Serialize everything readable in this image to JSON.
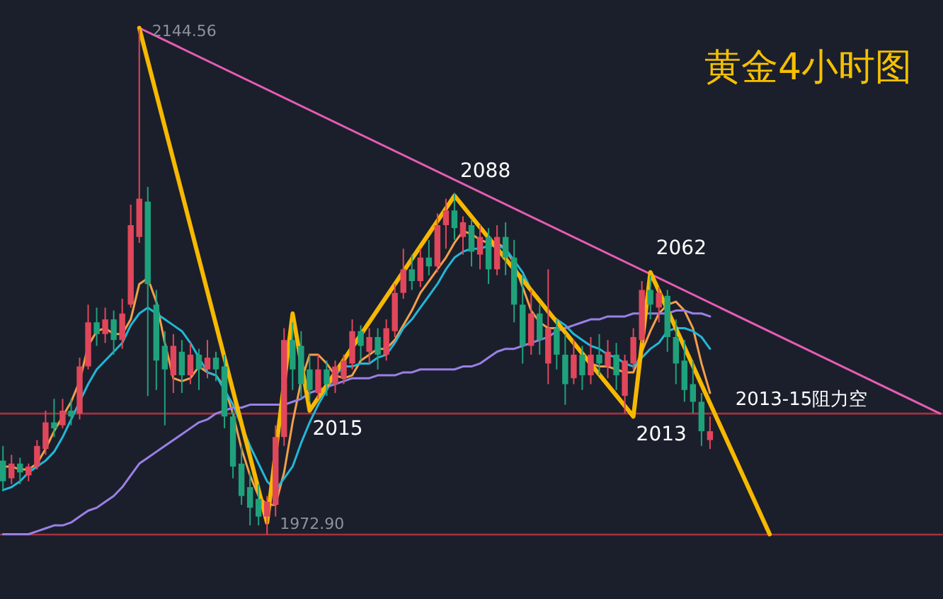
{
  "chart_data": {
    "type": "candlestick",
    "title": "黄金4小时图",
    "categories": [
      null,
      null,
      null,
      null,
      null,
      null,
      null,
      null,
      null,
      null,
      null,
      null,
      null,
      null,
      null,
      null,
      null,
      null,
      null,
      null,
      null,
      null,
      null,
      null,
      null,
      null,
      null,
      null,
      null,
      null,
      null,
      null,
      null,
      null,
      null,
      null,
      null,
      null,
      null,
      null,
      null,
      null,
      null,
      null,
      null,
      null,
      null,
      null,
      null,
      null,
      null,
      null,
      null,
      null,
      null,
      null,
      null,
      null,
      null,
      null,
      null,
      null,
      null,
      null,
      null,
      null,
      null,
      null,
      null,
      null,
      null,
      null,
      null,
      null,
      null,
      null,
      null,
      null,
      null,
      null,
      null,
      null,
      null,
      null,
      null,
      null,
      null,
      null,
      null,
      null,
      null,
      null,
      null,
      null,
      null,
      null,
      null,
      null,
      null,
      null,
      null,
      null,
      null,
      null,
      null,
      null,
      null,
      null,
      null,
      null,
      null
    ],
    "ohlc": [
      [
        1998,
        2003,
        1988,
        1991
      ],
      [
        1992,
        2000,
        1990,
        1997
      ],
      [
        1997,
        1999,
        1990,
        1994
      ],
      [
        1993,
        1997,
        1991,
        1996
      ],
      [
        1996,
        2005,
        1995,
        2003
      ],
      [
        2002,
        2015,
        2000,
        2011
      ],
      [
        2011,
        2019,
        2006,
        2009
      ],
      [
        2010,
        2019,
        2009,
        2015
      ],
      [
        2015,
        2019,
        2010,
        2013
      ],
      [
        2014,
        2033,
        2012,
        2030
      ],
      [
        2030,
        2051,
        2029,
        2045
      ],
      [
        2045,
        2050,
        2037,
        2041
      ],
      [
        2041,
        2050,
        2038,
        2046
      ],
      [
        2046,
        2049,
        2034,
        2039
      ],
      [
        2039,
        2053,
        2036,
        2048
      ],
      [
        2051,
        2085,
        2050,
        2078
      ],
      [
        2074,
        2144.56,
        2072,
        2087
      ],
      [
        2086,
        2091,
        2020,
        2058
      ],
      [
        2051,
        2056,
        2022,
        2032
      ],
      [
        2037,
        2042,
        2010,
        2029
      ],
      [
        2027,
        2041,
        2021,
        2037
      ],
      [
        2035,
        2039,
        2021,
        2027
      ],
      [
        2027,
        2038,
        2024,
        2034
      ],
      [
        2034,
        2036,
        2022,
        2029
      ],
      [
        2029,
        2039,
        2026,
        2033
      ],
      [
        2033,
        2035,
        2025,
        2029
      ],
      [
        2030,
        2034,
        2009,
        2013
      ],
      [
        2013,
        2015,
        1992,
        1996
      ],
      [
        1997,
        2003,
        1983,
        1986
      ],
      [
        1989,
        1994,
        1976,
        1982
      ],
      [
        1985,
        1990,
        1976,
        1979
      ],
      [
        1979,
        1986,
        1972.9,
        1984
      ],
      [
        1983,
        2010,
        1979,
        2006
      ],
      [
        2006,
        2043,
        2003,
        2039
      ],
      [
        2039,
        2045,
        2022,
        2029
      ],
      [
        2037,
        2042,
        2019,
        2024
      ],
      [
        2029,
        2034,
        2018,
        2022
      ],
      [
        2021,
        2034,
        2019,
        2029
      ],
      [
        2029,
        2032,
        2020,
        2024
      ],
      [
        2024,
        2032,
        2021,
        2030
      ],
      [
        2026,
        2034,
        2024,
        2032
      ],
      [
        2031,
        2046,
        2029,
        2042
      ],
      [
        2042,
        2044,
        2032,
        2037
      ],
      [
        2035,
        2043,
        2031,
        2040
      ],
      [
        2040,
        2043,
        2029,
        2034
      ],
      [
        2034,
        2046,
        2032,
        2043
      ],
      [
        2042,
        2058,
        2040,
        2055
      ],
      [
        2055,
        2070,
        2053,
        2063
      ],
      [
        2063,
        2068,
        2056,
        2059
      ],
      [
        2059,
        2070,
        2057,
        2067
      ],
      [
        2067,
        2073,
        2061,
        2064
      ],
      [
        2064,
        2082,
        2062,
        2078
      ],
      [
        2078,
        2087,
        2070,
        2083
      ],
      [
        2083,
        2089,
        2073,
        2077
      ],
      [
        2074,
        2081,
        2068,
        2079
      ],
      [
        2078,
        2080,
        2064,
        2069
      ],
      [
        2068,
        2078,
        2063,
        2074
      ],
      [
        2074,
        2077,
        2058,
        2063
      ],
      [
        2063,
        2078,
        2061,
        2074
      ],
      [
        2074,
        2079,
        2061,
        2067
      ],
      [
        2067,
        2073,
        2045,
        2051
      ],
      [
        2051,
        2061,
        2031,
        2037
      ],
      [
        2037,
        2056,
        2034,
        2048
      ],
      [
        2048,
        2051,
        2034,
        2039
      ],
      [
        2031,
        2063,
        2024,
        2043
      ],
      [
        2043,
        2046,
        2029,
        2034
      ],
      [
        2034,
        2041,
        2017,
        2024
      ],
      [
        2026,
        2039,
        2024,
        2034
      ],
      [
        2034,
        2037,
        2022,
        2027
      ],
      [
        2027,
        2040,
        2024,
        2034
      ],
      [
        2034,
        2041,
        2027,
        2031
      ],
      [
        2030,
        2039,
        2026,
        2035
      ],
      [
        2034,
        2038,
        2022,
        2027
      ],
      [
        2020,
        2034,
        2014,
        2032
      ],
      [
        2031,
        2043,
        2029,
        2040
      ],
      [
        2039,
        2059,
        2038,
        2056
      ],
      [
        2056,
        2061,
        2046,
        2051
      ],
      [
        2050,
        2057,
        2045,
        2055
      ],
      [
        2054,
        2056,
        2035,
        2040
      ],
      [
        2040,
        2046,
        2024,
        2031
      ],
      [
        2032,
        2039,
        2018,
        2022
      ],
      [
        2024,
        2032,
        2014,
        2018
      ],
      [
        2018,
        2021,
        2003,
        2008
      ],
      [
        2005,
        2013,
        2002,
        2008
      ],
      null,
      null,
      null,
      null,
      null,
      null,
      null,
      null,
      null,
      null,
      null,
      null,
      null,
      null,
      null,
      null,
      null,
      null,
      null,
      null,
      null,
      null,
      null,
      null,
      null,
      null,
      null
    ],
    "colors": [
      "#1fa27c",
      "#e0475b",
      "#1fa27c",
      "#e0475b",
      "#e0475b",
      "#e0475b",
      "#1fa27c",
      "#e0475b",
      "#1fa27c",
      "#e0475b",
      "#e0475b",
      "#1fa27c",
      "#e0475b",
      "#1fa27c",
      "#e0475b",
      "#e0475b",
      "#e0475b",
      "#1fa27c",
      "#1fa27c",
      "#1fa27c",
      "#e0475b",
      "#1fa27c",
      "#e0475b",
      "#1fa27c",
      "#e0475b",
      "#1fa27c",
      "#1fa27c",
      "#1fa27c",
      "#1fa27c",
      "#1fa27c",
      "#1fa27c",
      "#e0475b",
      "#e0475b",
      "#e0475b",
      "#1fa27c",
      "#1fa27c",
      "#1fa27c",
      "#e0475b",
      "#1fa27c",
      "#e0475b",
      "#e0475b",
      "#e0475b",
      "#1fa27c",
      "#e0475b",
      "#1fa27c",
      "#e0475b",
      "#e0475b",
      "#e0475b",
      "#1fa27c",
      "#e0475b",
      "#1fa27c",
      "#e0475b",
      "#e0475b",
      "#1fa27c",
      "#e0475b",
      "#1fa27c",
      "#e0475b",
      "#1fa27c",
      "#e0475b",
      "#1fa27c",
      "#1fa27c",
      "#1fa27c",
      "#e0475b",
      "#1fa27c",
      "#e0475b",
      "#1fa27c",
      "#1fa27c",
      "#e0475b",
      "#1fa27c",
      "#e0475b",
      "#1fa27c",
      "#e0475b",
      "#1fa27c",
      "#e0475b",
      "#e0475b",
      "#e0475b",
      "#1fa27c",
      "#e0475b",
      "#1fa27c",
      "#1fa27c",
      "#1fa27c",
      "#1fa27c",
      "#1fa27c",
      "#e0475b",
      null,
      null,
      null,
      null,
      null,
      null,
      null,
      null,
      null,
      null,
      null,
      null,
      null,
      null,
      null,
      null,
      null,
      null,
      null,
      null,
      null,
      null,
      null,
      null,
      null,
      null,
      null
    ],
    "value_labels": [
      null,
      null,
      null,
      null,
      null,
      null,
      null,
      null,
      null,
      null,
      null,
      null,
      null,
      null,
      null,
      null,
      "2144.56",
      null,
      null,
      null,
      null,
      null,
      null,
      null,
      null,
      null,
      null,
      null,
      null,
      null,
      null,
      "1972.90",
      null,
      null,
      null,
      null,
      null,
      null,
      null,
      null,
      null,
      null,
      null,
      null,
      null,
      null,
      null,
      null,
      null,
      null,
      null,
      null,
      null,
      null,
      null,
      null,
      null,
      null,
      null,
      null,
      null,
      null,
      null,
      null,
      null,
      null,
      null,
      null,
      null,
      null,
      null,
      null,
      null,
      null,
      null,
      null,
      null,
      null,
      null,
      null,
      null,
      null,
      null,
      null,
      null,
      null,
      null,
      null,
      null,
      null,
      null,
      null,
      null,
      null,
      null,
      null,
      null,
      null,
      null,
      null,
      null,
      null,
      null,
      null,
      null,
      null,
      null,
      null,
      null,
      null,
      null
    ],
    "series": [
      {
        "type": "line",
        "color": "#f2a04a",
        "values": [
          1996,
          1996,
          1995,
          1995,
          1997,
          2002,
          2008,
          2013,
          2018,
          2025,
          2037,
          2042,
          2043,
          2041,
          2041,
          2046,
          2058,
          2060,
          2052,
          2038,
          2026,
          2025,
          2026,
          2030,
          2028,
          2027,
          2023,
          2014,
          2002,
          1993,
          1986,
          1983,
          1983,
          1994,
          2011,
          2025,
          2034,
          2034,
          2031,
          2027,
          2026,
          2027,
          2032,
          2034,
          2036,
          2036,
          2039,
          2044,
          2049,
          2055,
          2059,
          2063,
          2067,
          2072,
          2076,
          2075,
          2073,
          2072,
          2072,
          2070,
          2065,
          2057,
          2049,
          2045,
          2043,
          2043,
          2042,
          2038,
          2034,
          2031,
          2030,
          2030,
          2029,
          2028,
          2028,
          2035,
          2042,
          2048,
          2051,
          2052,
          2049,
          2043,
          2031,
          2021,
          null,
          null,
          null,
          null,
          null,
          null,
          null,
          null,
          null,
          null,
          null,
          null,
          null,
          null,
          null,
          null,
          null,
          null,
          null,
          null,
          null,
          null,
          null,
          null,
          null,
          null,
          null
        ]
      },
      {
        "type": "line",
        "color": "#22b7d8",
        "values": [
          1988,
          1989,
          1991,
          1994,
          1996,
          1998,
          2001,
          2006,
          2012,
          2018,
          2024,
          2029,
          2032,
          2035,
          2038,
          2044,
          2048,
          2050,
          2048,
          2046,
          2044,
          2042,
          2038,
          2033,
          2028,
          2027,
          2022,
          2017,
          2010,
          2003,
          1997,
          1991,
          1988,
          1992,
          1996,
          2004,
          2011,
          2017,
          2022,
          2027,
          2030,
          2030,
          2031,
          2031,
          2033,
          2034,
          2038,
          2043,
          2046,
          2050,
          2054,
          2058,
          2063,
          2067,
          2069,
          2070,
          2070,
          2071,
          2071,
          2070,
          2066,
          2062,
          2056,
          2052,
          2048,
          2046,
          2044,
          2041,
          2039,
          2037,
          2036,
          2034,
          2033,
          2031,
          2030,
          2033,
          2036,
          2038,
          2042,
          2043,
          2043,
          2042,
          2040,
          2036,
          null,
          null,
          null,
          null,
          null,
          null,
          null,
          null,
          null,
          null,
          null,
          null,
          null,
          null,
          null,
          null,
          null,
          null,
          null,
          null,
          null,
          null,
          null,
          null,
          null,
          null,
          null
        ]
      },
      {
        "type": "line",
        "color": "#9a80e6",
        "values": [
          1973,
          1973,
          1973,
          1973,
          1974,
          1975,
          1976,
          1976,
          1977,
          1979,
          1981,
          1982,
          1984,
          1986,
          1989,
          1993,
          1997,
          1999,
          2001,
          2003,
          2005,
          2007,
          2009,
          2011,
          2012,
          2014,
          2015,
          2016,
          2016,
          2017,
          2017,
          2017,
          2017,
          2017,
          2018,
          2019,
          2021,
          2022,
          2023,
          2024,
          2025,
          2026,
          2026,
          2026,
          2027,
          2027,
          2027,
          2028,
          2028,
          2029,
          2029,
          2029,
          2029,
          2029,
          2030,
          2030,
          2031,
          2033,
          2035,
          2036,
          2036,
          2037,
          2038,
          2039,
          2040,
          2042,
          2043,
          2044,
          2045,
          2046,
          2046,
          2047,
          2047,
          2047,
          2048,
          2048,
          2048,
          2048,
          2048,
          2049,
          2049,
          2048,
          2048,
          2047,
          null,
          null,
          null,
          null,
          null,
          null,
          null,
          null,
          null,
          null,
          null,
          null,
          null,
          null,
          null,
          null,
          null,
          null,
          null,
          null,
          null,
          null,
          null,
          null,
          null,
          null,
          null
        ]
      },
      {
        "type": "line",
        "color": "#e65cb4",
        "values": [
          null,
          null,
          null,
          null,
          null,
          null,
          null,
          null,
          null,
          null,
          null,
          null,
          null,
          null,
          null,
          null,
          2145,
          null,
          null,
          null,
          null,
          null,
          null,
          null,
          null,
          null,
          null,
          null,
          null,
          null,
          null,
          null,
          null,
          null,
          null,
          null,
          null,
          null,
          null,
          null,
          null,
          null,
          null,
          null,
          null,
          null,
          null,
          null,
          null,
          null,
          null,
          null,
          null,
          null,
          null,
          null,
          null,
          null,
          null,
          null,
          null,
          null,
          null,
          null,
          null,
          null,
          null,
          null,
          null,
          null,
          null,
          null,
          null,
          null,
          null,
          null,
          null,
          null,
          null,
          null,
          null,
          null,
          null,
          null,
          null,
          null,
          null,
          null,
          null,
          null,
          null,
          null,
          null,
          null,
          null,
          null,
          null,
          null,
          null,
          null,
          null,
          null,
          null,
          null,
          null,
          null,
          null,
          null,
          null,
          null,
          2014
        ]
      },
      {
        "type": "line",
        "color": "#f7b800",
        "values": [
          null,
          null,
          null,
          null,
          null,
          null,
          null,
          null,
          null,
          null,
          null,
          null,
          null,
          null,
          null,
          null,
          2145,
          null,
          null,
          null,
          null,
          null,
          null,
          null,
          null,
          null,
          null,
          null,
          null,
          null,
          null,
          1977,
          null,
          null,
          2048,
          null,
          2015,
          null,
          null,
          null,
          null,
          null,
          null,
          null,
          null,
          null,
          null,
          null,
          null,
          null,
          null,
          null,
          null,
          2088,
          null,
          null,
          null,
          null,
          null,
          null,
          null,
          null,
          null,
          null,
          null,
          null,
          null,
          null,
          null,
          null,
          null,
          null,
          null,
          null,
          2013,
          null,
          2062,
          null,
          null,
          null,
          null,
          null,
          null,
          null,
          null,
          null,
          null,
          null,
          null,
          null,
          1973,
          null,
          null,
          null,
          null,
          null,
          null,
          null,
          null,
          null,
          null,
          null,
          null,
          null,
          null,
          null,
          null,
          null,
          null,
          null,
          null
        ],
        "value_labels": [
          null,
          null,
          null,
          null,
          null,
          null,
          null,
          null,
          null,
          null,
          null,
          null,
          null,
          null,
          null,
          null,
          null,
          null,
          null,
          null,
          null,
          null,
          null,
          null,
          null,
          null,
          null,
          null,
          null,
          null,
          null,
          null,
          null,
          null,
          null,
          null,
          "2015",
          null,
          null,
          null,
          null,
          null,
          null,
          null,
          null,
          null,
          null,
          null,
          null,
          null,
          null,
          null,
          null,
          "2088",
          null,
          null,
          null,
          null,
          null,
          null,
          null,
          null,
          null,
          null,
          null,
          null,
          null,
          null,
          null,
          null,
          null,
          null,
          null,
          null,
          "2013",
          null,
          "2062",
          null,
          null,
          null,
          null,
          null,
          null,
          null,
          null,
          null,
          null,
          null,
          null,
          null,
          null,
          null,
          null,
          null,
          null,
          null,
          null,
          null,
          null,
          null,
          null,
          null,
          null,
          null,
          null,
          null,
          null,
          null,
          null,
          null,
          null
        ]
      }
    ],
    "ylim": [
      1951,
      2154.5
    ],
    "tick_labels": false,
    "ref_lines": [
      {
        "axis": "y",
        "value": 2014,
        "label": "2013-15阻力空",
        "color": "#a3323f"
      },
      {
        "axis": "y",
        "value": 1972.9,
        "color": "#a3323f"
      }
    ]
  }
}
